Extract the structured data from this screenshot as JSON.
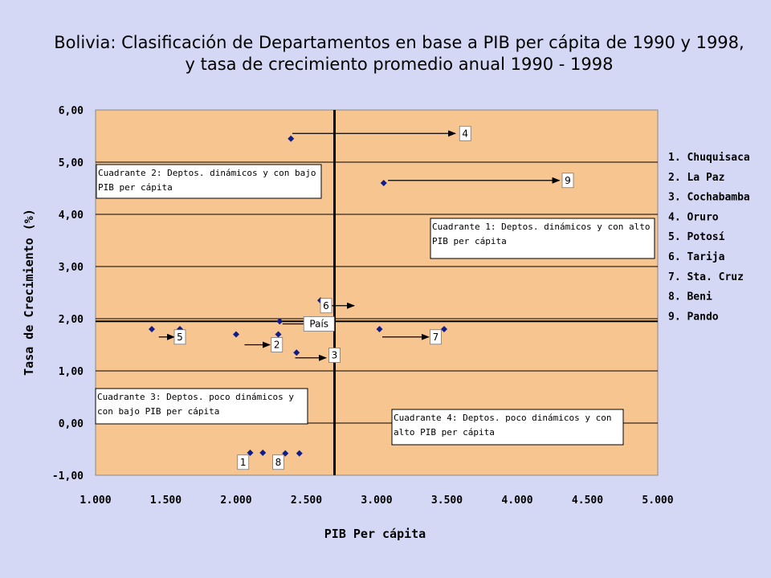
{
  "colors": {
    "background": "#d4d8f4",
    "plot_area": "#f7c58f",
    "marker": "#0f1d8c",
    "gridline": "#000000",
    "box_fill": "#ffffff"
  },
  "chart_data": {
    "type": "scatter",
    "title": "Bolivia: Clasificación de Departamentos en base a PIB per cápita de 1990 y 1998,",
    "subtitle": "y tasa de crecimiento promedio anual 1990 - 1998",
    "xlabel": "PIB Per cápita",
    "ylabel": "Tasa de Crecimiento (%)",
    "xlim": [
      1000,
      5000
    ],
    "ylim": [
      -1.0,
      6.0
    ],
    "x_ticks": [
      {
        "value": 1000,
        "label": "1.000"
      },
      {
        "value": 1500,
        "label": "1.500"
      },
      {
        "value": 2000,
        "label": "2.000"
      },
      {
        "value": 2500,
        "label": "2.500"
      },
      {
        "value": 3000,
        "label": "3.000"
      },
      {
        "value": 3500,
        "label": "3.500"
      },
      {
        "value": 4000,
        "label": "4.000"
      },
      {
        "value": 4500,
        "label": "4.500"
      },
      {
        "value": 5000,
        "label": "5.000"
      }
    ],
    "y_ticks": [
      {
        "value": -1,
        "label": "-1,00"
      },
      {
        "value": 0,
        "label": "0,00"
      },
      {
        "value": 1,
        "label": "1,00"
      },
      {
        "value": 2,
        "label": "2,00"
      },
      {
        "value": 3,
        "label": "3,00"
      },
      {
        "value": 4,
        "label": "4,00"
      },
      {
        "value": 5,
        "label": "5,00"
      },
      {
        "value": 6,
        "label": "6,00"
      }
    ],
    "grid": "horizontal",
    "reference_lines": {
      "x": 2700,
      "y": 1.95
    },
    "points": [
      {
        "x": 2390,
        "y": 5.45
      },
      {
        "x": 3050,
        "y": 4.6
      },
      {
        "x": 2600,
        "y": 2.35
      },
      {
        "x": 2310,
        "y": 1.95
      },
      {
        "x": 1400,
        "y": 1.8
      },
      {
        "x": 1600,
        "y": 1.8
      },
      {
        "x": 2000,
        "y": 1.7
      },
      {
        "x": 2300,
        "y": 1.7
      },
      {
        "x": 3020,
        "y": 1.8
      },
      {
        "x": 3480,
        "y": 1.8
      },
      {
        "x": 2430,
        "y": 1.35
      },
      {
        "x": 2100,
        "y": -0.57
      },
      {
        "x": 2190,
        "y": -0.57
      },
      {
        "x": 2350,
        "y": -0.58
      },
      {
        "x": 2450,
        "y": -0.58
      }
    ],
    "point_labels": [
      {
        "text": "4",
        "x": 3630,
        "y": 5.55,
        "arrow_from": [
          2400,
          5.55
        ],
        "arrow_to": [
          3560,
          5.55
        ]
      },
      {
        "text": "9",
        "x": 4360,
        "y": 4.65,
        "arrow_from": [
          3080,
          4.65
        ],
        "arrow_to": [
          4300,
          4.65
        ]
      },
      {
        "text": "6",
        "x": 2640,
        "y": 2.25,
        "arrow_from": [
          2600,
          2.25
        ],
        "arrow_to": [
          2840,
          2.25
        ]
      },
      {
        "text": "País",
        "x": 2590,
        "y": 1.9,
        "arrow_from": [
          2330,
          1.9
        ],
        "arrow_to": [
          2540,
          1.9
        ]
      },
      {
        "text": "5",
        "x": 1600,
        "y": 1.65,
        "arrow_from": [
          1450,
          1.65
        ],
        "arrow_to": [
          1560,
          1.65
        ]
      },
      {
        "text": "2",
        "x": 2290,
        "y": 1.5,
        "arrow_from": [
          2060,
          1.5
        ],
        "arrow_to": [
          2240,
          1.5
        ]
      },
      {
        "text": "3",
        "x": 2700,
        "y": 1.3,
        "arrow_from": [
          2420,
          1.25
        ],
        "arrow_to": [
          2640,
          1.25
        ]
      },
      {
        "text": "7",
        "x": 3420,
        "y": 1.65,
        "arrow_from": [
          3040,
          1.65
        ],
        "arrow_to": [
          3370,
          1.65
        ]
      },
      {
        "text": "1",
        "x": 2050,
        "y": -0.75
      },
      {
        "text": "8",
        "x": 2300,
        "y": -0.75
      }
    ],
    "annotations": [
      {
        "text": [
          "Cuadrante 2: Deptos. dinámicos y con bajo",
          "PIB per cápita"
        ]
      },
      {
        "text": [
          "Cuadrante 1: Deptos. dinámicos y con alto",
          "PIB per cápita"
        ]
      },
      {
        "text": [
          "Cuadrante 3: Deptos.  poco dinámicos y",
          "con bajo PIB per cápita"
        ]
      },
      {
        "text": [
          "Cuadrante 4: Deptos. poco dinámicos  y con",
          "alto PIB per cápita"
        ]
      }
    ],
    "legend": {
      "placement": "right",
      "items": [
        "1. Chuquisaca",
        "2. La Paz",
        "3. Cochabamba",
        "4. Oruro",
        "5. Potosí",
        "6. Tarija",
        "7. Sta. Cruz",
        "8. Beni",
        "9. Pando"
      ]
    }
  }
}
